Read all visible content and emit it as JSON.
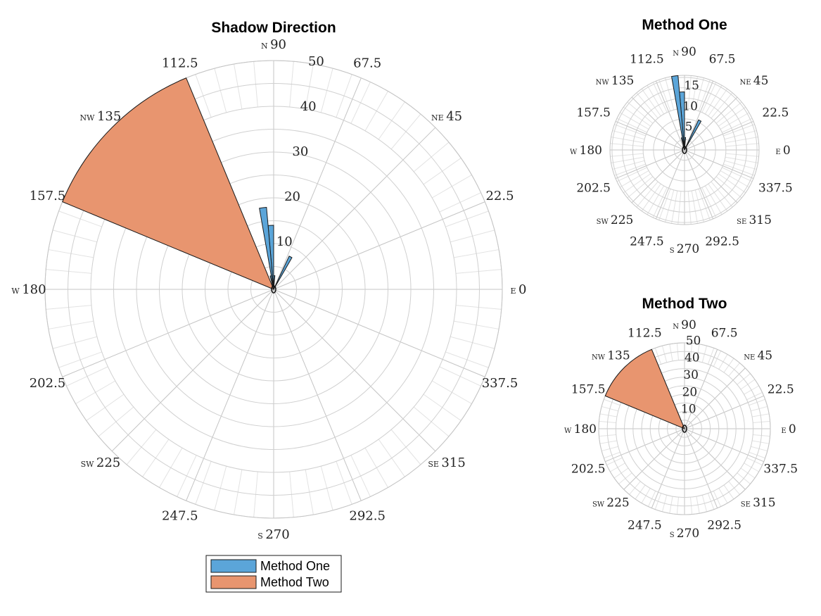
{
  "colors": {
    "method_one": "#5ba5d9",
    "method_two": "#e8956f",
    "outline": "#1a1a1a",
    "grid": "#d0d0d0"
  },
  "legend": {
    "items": [
      {
        "label": "Method One",
        "color": "#5ba5d9"
      },
      {
        "label": "Method Two",
        "color": "#e8956f"
      }
    ]
  },
  "chart_data": [
    {
      "type": "polar-histogram",
      "title": "Shadow Direction",
      "rlim": [
        0,
        50
      ],
      "rticks": [
        10,
        20,
        30,
        40,
        50
      ],
      "angle_ticks": [
        "0",
        "22.5",
        "45",
        "67.5",
        "90",
        "112.5",
        "135",
        "157.5",
        "180",
        "202.5",
        "225",
        "247.5",
        "270",
        "292.5",
        "315",
        "337.5"
      ],
      "cardinal_labels": {
        "0": "E",
        "45": "NE",
        "90": "N",
        "135": "NW",
        "180": "W",
        "225": "SW",
        "270": "S",
        "315": "SE"
      },
      "grid": true,
      "series": [
        {
          "name": "Method One",
          "bins": [
            {
              "from": 60,
              "to": 65,
              "value": 8
            },
            {
              "from": 85,
              "to": 90,
              "value": 3
            },
            {
              "from": 90,
              "to": 95,
              "value": 14
            },
            {
              "from": 95,
              "to": 100,
              "value": 18
            },
            {
              "from": 100,
              "to": 105,
              "value": 3
            },
            {
              "from": 105,
              "to": 110,
              "value": 1
            }
          ]
        },
        {
          "name": "Method Two",
          "bins": [
            {
              "from": 112.5,
              "to": 157.5,
              "value": 50
            }
          ]
        }
      ]
    },
    {
      "type": "polar-histogram",
      "title": "Method One",
      "rlim": [
        0,
        18
      ],
      "rticks": [
        5,
        10,
        15
      ],
      "angle_ticks": [
        "0",
        "22.5",
        "45",
        "67.5",
        "90",
        "112.5",
        "135",
        "157.5",
        "180",
        "202.5",
        "225",
        "247.5",
        "270",
        "292.5",
        "315",
        "337.5"
      ],
      "cardinal_labels": {
        "0": "E",
        "45": "NE",
        "90": "N",
        "135": "NW",
        "180": "W",
        "225": "SW",
        "270": "S",
        "315": "SE"
      },
      "grid": true,
      "series": [
        {
          "name": "Method One",
          "bins": [
            {
              "from": 60,
              "to": 65,
              "value": 8
            },
            {
              "from": 85,
              "to": 90,
              "value": 3
            },
            {
              "from": 90,
              "to": 95,
              "value": 14
            },
            {
              "from": 95,
              "to": 100,
              "value": 18
            },
            {
              "from": 100,
              "to": 105,
              "value": 3
            },
            {
              "from": 105,
              "to": 110,
              "value": 1
            }
          ]
        }
      ]
    },
    {
      "type": "polar-histogram",
      "title": "Method Two",
      "rlim": [
        0,
        50
      ],
      "rticks": [
        10,
        20,
        30,
        40,
        50
      ],
      "angle_ticks": [
        "0",
        "22.5",
        "45",
        "67.5",
        "90",
        "112.5",
        "135",
        "157.5",
        "180",
        "202.5",
        "225",
        "247.5",
        "270",
        "292.5",
        "315",
        "337.5"
      ],
      "cardinal_labels": {
        "0": "E",
        "45": "NE",
        "90": "N",
        "135": "NW",
        "180": "W",
        "225": "SW",
        "270": "S",
        "315": "SE"
      },
      "grid": true,
      "series": [
        {
          "name": "Method Two",
          "bins": [
            {
              "from": 112.5,
              "to": 157.5,
              "value": 50
            }
          ]
        }
      ]
    }
  ]
}
